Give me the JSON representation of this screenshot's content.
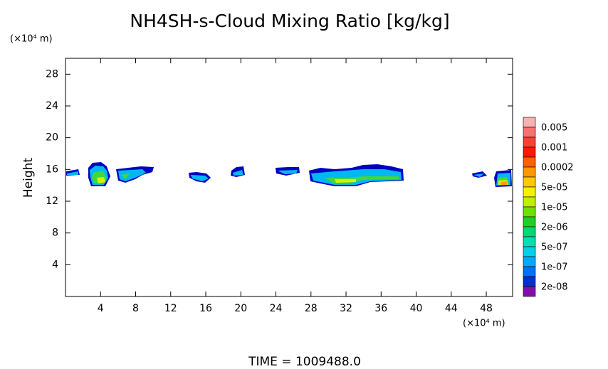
{
  "chart_data": {
    "type": "contour",
    "title": "NH4SH-s-Cloud Mixing Ratio [kg/kg]",
    "y_unit": "(×10⁴ m)",
    "x_unit": "(×10⁴ m)",
    "y_label": "Height",
    "footer": "TIME = 1009488.0",
    "xlim": [
      0,
      51
    ],
    "ylim": [
      0,
      30
    ],
    "xticks": [
      4,
      8,
      12,
      16,
      20,
      24,
      28,
      32,
      36,
      40,
      44,
      48
    ],
    "yticks": [
      4,
      8,
      12,
      16,
      20,
      24,
      28
    ],
    "colorbar": {
      "colors": [
        "#f8b0b0",
        "#f87070",
        "#ff4030",
        "#ff1800",
        "#ff6000",
        "#ff9800",
        "#ffc800",
        "#f8f000",
        "#c0f000",
        "#70e000",
        "#20d020",
        "#00d870",
        "#00e0b0",
        "#00d0e8",
        "#00a8ff",
        "#0070ff",
        "#0030d0",
        "#8010a8"
      ],
      "levels": [
        {
          "value": 0.005,
          "label": "0.005"
        },
        {
          "value": 0.001,
          "label": "0.001"
        },
        {
          "value": 0.0002,
          "label": "0.0002"
        },
        {
          "value": 5e-05,
          "label": "5e-05"
        },
        {
          "value": 1e-05,
          "label": "1e-05"
        },
        {
          "value": 2e-06,
          "label": "2e-06"
        },
        {
          "value": 5e-07,
          "label": "5e-07"
        },
        {
          "value": 1e-07,
          "label": "1e-07"
        },
        {
          "value": 2e-08,
          "label": "2e-08"
        }
      ]
    }
  }
}
